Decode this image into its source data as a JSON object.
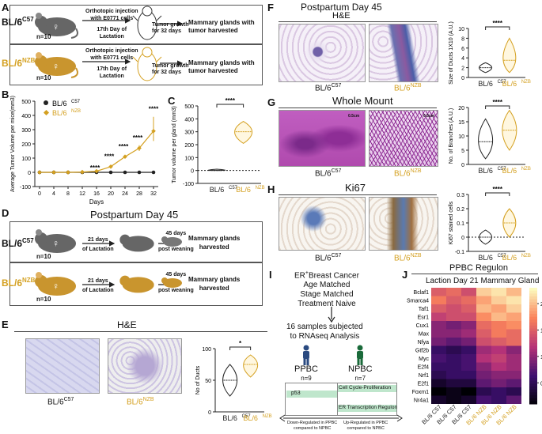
{
  "panels": {
    "A": {
      "letter": "A",
      "strain_c57": "BL/6",
      "sup_c57": "C57",
      "strain_nzb": "BL/6",
      "sup_nzb": "NZB",
      "n": "n=10",
      "inj1": "Orthotopic injection",
      "inj2": "with E0771 cells",
      "inj3": "17th Day of",
      "inj4": "Lactation",
      "growth1": "Tumor growth",
      "growth2": "for 32 days",
      "result1": "Mammary glands with",
      "result2": "tumor harvested"
    },
    "B": {
      "letter": "B",
      "ylabel": "Average Tumor Volume per mice(mm3)",
      "xlabel": "Days",
      "leg1": "BL/6",
      "leg1sup": "C57",
      "leg2": "BL/6",
      "leg2sup": "NZB",
      "stars": "****"
    },
    "C": {
      "letter": "C",
      "ylabel": "Tumor volume per gland (mm3)",
      "stars": "****",
      "x1": "BL/6",
      "x1sup": "C57",
      "x2": "BL/6",
      "x2sup": "NZB"
    },
    "D": {
      "letter": "D",
      "title": "Postpartum Day 45",
      "strain_c57": "BL/6",
      "sup_c57": "C57",
      "strain_nzb": "BL/6",
      "sup_nzb": "NZB",
      "n": "n=10",
      "step1a": "21 days",
      "step1b": "of Lactation",
      "step2a": "45 days",
      "step2b": "post weaning",
      "result1": "Mammary glands",
      "result2": "harvested"
    },
    "E": {
      "letter": "E",
      "title": "H&E",
      "cap1": "BL/6",
      "cap1sup": "C57",
      "cap2": "BL/6",
      "cap2sup": "NZB",
      "ylabel": "No of Ducts",
      "stars": "*"
    },
    "F": {
      "letter": "F",
      "title": "Postpartum Day 45",
      "sub": "H&E",
      "cap1": "BL/6",
      "cap1sup": "C57",
      "cap2": "BL/6",
      "cap2sup": "NZB",
      "ylabel": "Size of Ducts 1X10 (A.U.)",
      "stars": "****"
    },
    "G": {
      "letter": "G",
      "title": "Whole Mount",
      "scale1": "0.5cm",
      "scale2": "0.5cm",
      "cap1": "BL/6",
      "cap1sup": "C57",
      "cap2": "BL/6",
      "cap2sup": "NZB",
      "ylabel": "No. of Branches (A.U.)",
      "stars": "****"
    },
    "H": {
      "letter": "H",
      "title": "Ki67",
      "cap1": "BL/6",
      "cap1sup": "C57",
      "cap2": "BL/6",
      "cap2sup": "NZB",
      "ylabel": "Ki67 stained cells",
      "stars": "****"
    },
    "I": {
      "letter": "I",
      "line1": "ER",
      "line1sup": "+",
      "line1b": "Breast Cancer",
      "line2": "Age Matched",
      "line3": "Stage Matched",
      "line4": "Treatment Naive",
      "line5": "16 samples subjected",
      "line6": "to RNAseq Analysis",
      "ppbc": "PPBC",
      "ppbc_n": "n=9",
      "npbc": "NPBC",
      "npbc_n": "n=7",
      "bar1": "p53",
      "bar2": "Cell Cycle-Proliferation",
      "bar3": "ER Transcription Regulon",
      "foot1": "Down-Regulated in PPBC",
      "foot1b": "compared to NPBC",
      "foot2": "Up-Regulated in PPBC",
      "foot2b": "compared to NPBC"
    },
    "J": {
      "letter": "J",
      "title": "PPBC Regulon",
      "subtitle": "Laction Day 21 Mammary Gland"
    }
  },
  "chart_data": [
    {
      "id": "B",
      "type": "line",
      "x": [
        0,
        4,
        8,
        12,
        16,
        20,
        24,
        28,
        32
      ],
      "xlabel": "Days",
      "ylabel": "Average Tumor Volume per mice(mm3)",
      "ylim": [
        -100,
        500
      ],
      "yticks": [
        -100,
        0,
        100,
        200,
        300,
        400,
        500
      ],
      "series": [
        {
          "name": "BL/6 C57",
          "color": "#222222",
          "values": [
            0,
            0,
            0,
            0,
            0,
            0,
            0,
            0,
            0
          ]
        },
        {
          "name": "BL/6 NZB",
          "color": "#d4a020",
          "values": [
            0,
            0,
            0,
            2,
            8,
            40,
            110,
            170,
            290
          ]
        }
      ],
      "significance": [
        "****",
        "****",
        "****",
        "****"
      ]
    },
    {
      "id": "C",
      "type": "violin",
      "categories": [
        "BL/6 C57",
        "BL/6 NZB"
      ],
      "ylim": [
        -100,
        500
      ],
      "yticks": [
        -100,
        0,
        100,
        200,
        300,
        400,
        500
      ],
      "medians": [
        0,
        300
      ],
      "ranges": [
        [
          0,
          10
        ],
        [
          210,
          380
        ]
      ]
    },
    {
      "id": "E",
      "type": "violin",
      "categories": [
        "BL/6 C57",
        "BL/6 NZB"
      ],
      "ylabel": "No of Ducts",
      "ylim": [
        0,
        100
      ],
      "yticks": [
        0,
        50,
        100
      ],
      "medians": [
        50,
        75
      ],
      "ranges": [
        [
          25,
          75
        ],
        [
          55,
          90
        ]
      ]
    },
    {
      "id": "F",
      "type": "violin",
      "categories": [
        "BL/6 C57",
        "BL/6 NZB"
      ],
      "ylabel": "Size of Ducts 1X10 (A.U.)",
      "ylim": [
        0,
        10
      ],
      "yticks": [
        0,
        2,
        4,
        6,
        8,
        10
      ],
      "medians": [
        2,
        3.5
      ],
      "ranges": [
        [
          1,
          3
        ],
        [
          1,
          8
        ]
      ]
    },
    {
      "id": "G",
      "type": "violin",
      "categories": [
        "BL/6 C57",
        "BL/6 NZB"
      ],
      "ylabel": "No. of Branches (A.U.)",
      "ylim": [
        0,
        20
      ],
      "yticks": [
        0,
        5,
        10,
        15,
        20
      ],
      "medians": [
        8,
        12
      ],
      "ranges": [
        [
          2,
          16
        ],
        [
          5,
          19
        ]
      ]
    },
    {
      "id": "H",
      "type": "violin",
      "categories": [
        "BL/6 C57",
        "BL/6 NZB"
      ],
      "ylabel": "Ki67 stained cells",
      "ylim": [
        -0.1,
        0.3
      ],
      "yticks": [
        -0.1,
        0.0,
        0.1,
        0.2,
        0.3
      ],
      "medians": [
        0.0,
        0.1
      ],
      "ranges": [
        [
          -0.05,
          0.05
        ],
        [
          0.0,
          0.2
        ]
      ]
    },
    {
      "id": "J",
      "type": "heatmap",
      "title": "PPBC Regulon",
      "rows": [
        "Bclaf1",
        "Smarca4",
        "Taf1",
        "Esr1",
        "Cux1",
        "Max",
        "Nfya",
        "Gtf2b",
        "Myc",
        "E2f4",
        "Nrf1",
        "E2f1",
        "Foxm1",
        "Nr4a1"
      ],
      "cols": [
        "BL/6 C57",
        "BL/6 C57",
        "BL/6 C57",
        "BL/6 NZB",
        "BL/6 NZB",
        "BL/6 NZB"
      ],
      "colsup": [
        "C57",
        "C57",
        "C57",
        "NZB",
        "NZB",
        "NZB"
      ],
      "colorbar_ticks": [
        0.5,
        1.0,
        1.5,
        2.0
      ],
      "vrange": [
        0.1,
        2.3
      ],
      "values": [
        [
          1.5,
          1.6,
          1.4,
          2.1,
          2.2,
          2.0
        ],
        [
          1.7,
          1.5,
          1.6,
          1.9,
          2.1,
          2.2
        ],
        [
          1.5,
          1.4,
          1.5,
          2.0,
          1.9,
          2.1
        ],
        [
          1.3,
          1.4,
          1.4,
          1.8,
          2.0,
          1.9
        ],
        [
          1.0,
          0.9,
          1.0,
          1.6,
          1.7,
          1.8
        ],
        [
          1.0,
          1.0,
          1.1,
          1.5,
          1.7,
          1.6
        ],
        [
          0.9,
          0.8,
          0.9,
          1.4,
          1.5,
          1.6
        ],
        [
          0.6,
          0.5,
          0.6,
          1.1,
          1.2,
          1.0
        ],
        [
          0.7,
          0.6,
          0.7,
          1.2,
          1.3,
          1.1
        ],
        [
          0.6,
          0.6,
          0.7,
          1.0,
          1.2,
          1.1
        ],
        [
          0.5,
          0.6,
          0.6,
          0.9,
          1.0,
          1.0
        ],
        [
          0.3,
          0.4,
          0.4,
          0.8,
          0.9,
          0.8
        ],
        [
          0.1,
          0.2,
          0.1,
          0.5,
          0.6,
          0.5
        ],
        [
          0.3,
          0.2,
          0.3,
          0.7,
          0.6,
          0.8
        ]
      ]
    }
  ],
  "colors": {
    "gold": "#d4a020",
    "dark": "#222222",
    "purple_stain": "#b347b0"
  }
}
